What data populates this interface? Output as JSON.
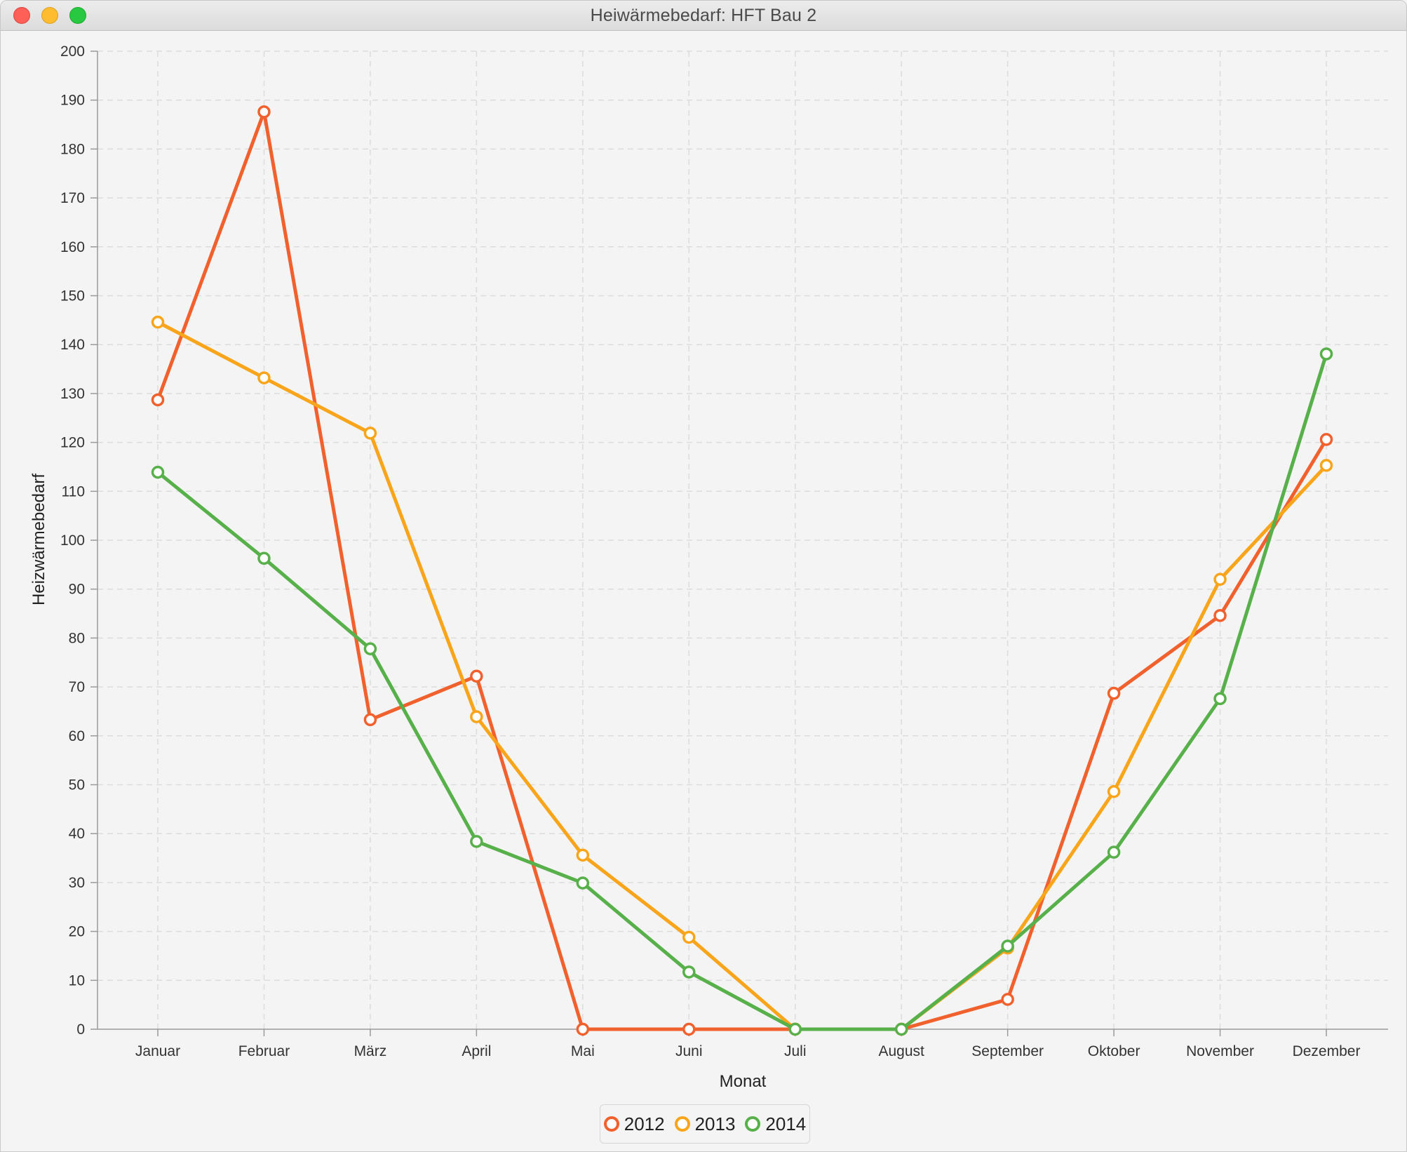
{
  "window": {
    "title": "Heiwärmebedarf: HFT Bau 2"
  },
  "chart_data": {
    "type": "line",
    "title": "Heiwärmebedarf: HFT Bau 2",
    "xlabel": "Monat",
    "ylabel": "Heizwärmebedarf",
    "ylim": [
      0,
      200
    ],
    "ytick_step": 10,
    "grid": true,
    "legend_position": "bottom-center",
    "categories": [
      "Januar",
      "Februar",
      "März",
      "April",
      "Mai",
      "Juni",
      "Juli",
      "August",
      "September",
      "Oktober",
      "November",
      "Dezember"
    ],
    "series": [
      {
        "name": "2012",
        "color": "#f0612e",
        "values": [
          128.7,
          187.6,
          63.3,
          72.2,
          0,
          0,
          0,
          0,
          6.1,
          68.7,
          84.6,
          120.6
        ]
      },
      {
        "name": "2013",
        "color": "#f9a51b",
        "values": [
          144.6,
          133.2,
          121.9,
          63.9,
          35.6,
          18.8,
          0,
          0,
          16.6,
          48.6,
          92.0,
          115.3
        ]
      },
      {
        "name": "2014",
        "color": "#57b04a",
        "values": [
          113.9,
          96.3,
          77.8,
          38.4,
          29.9,
          11.7,
          0,
          0,
          17.0,
          36.2,
          67.6,
          138.1
        ]
      }
    ]
  }
}
